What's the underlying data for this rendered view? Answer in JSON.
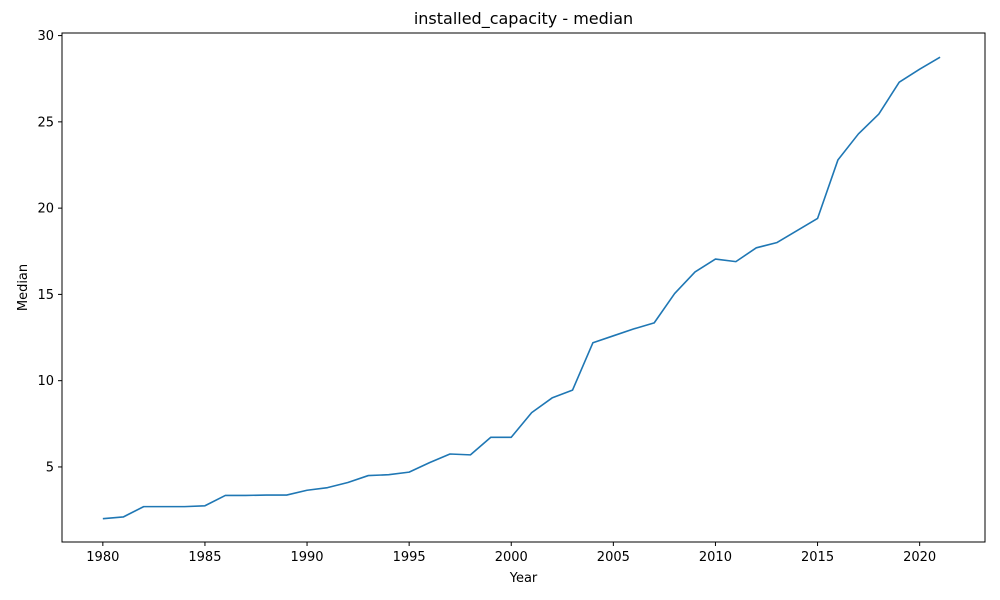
{
  "chart_data": {
    "type": "line",
    "title": "installed_capacity - median",
    "xlabel": "Year",
    "ylabel": "Median",
    "xlim": [
      1978,
      2023.2
    ],
    "ylim": [
      0.65,
      30.15
    ],
    "xticks": [
      1980,
      1985,
      1990,
      1995,
      2000,
      2005,
      2010,
      2015,
      2020
    ],
    "yticks": [
      5,
      10,
      15,
      20,
      25,
      30
    ],
    "grid": false,
    "series_color": "#1f77b4",
    "series": [
      {
        "x": [
          1980,
          1981,
          1982,
          1983,
          1984,
          1985,
          1986,
          1987,
          1988,
          1989,
          1990,
          1991,
          1992,
          1993,
          1994,
          1995,
          1996,
          1997,
          1998,
          1999,
          2000,
          2001,
          2002,
          2003,
          2004,
          2005,
          2006,
          2007,
          2008,
          2009,
          2010,
          2011,
          2012,
          2013,
          2014,
          2015,
          2016,
          2017,
          2018,
          2019,
          2020,
          2021
        ],
        "values": [
          2.0,
          2.1,
          2.7,
          2.7,
          2.7,
          2.75,
          3.35,
          3.35,
          3.37,
          3.37,
          3.65,
          3.8,
          4.1,
          4.5,
          4.55,
          4.7,
          5.25,
          5.75,
          5.7,
          6.72,
          6.72,
          8.15,
          9.0,
          9.45,
          12.2,
          12.6,
          13.0,
          13.35,
          15.05,
          16.3,
          17.05,
          16.9,
          17.7,
          18.0,
          18.7,
          19.4,
          22.8,
          24.3,
          25.45,
          27.3,
          28.05,
          28.75
        ]
      }
    ]
  }
}
